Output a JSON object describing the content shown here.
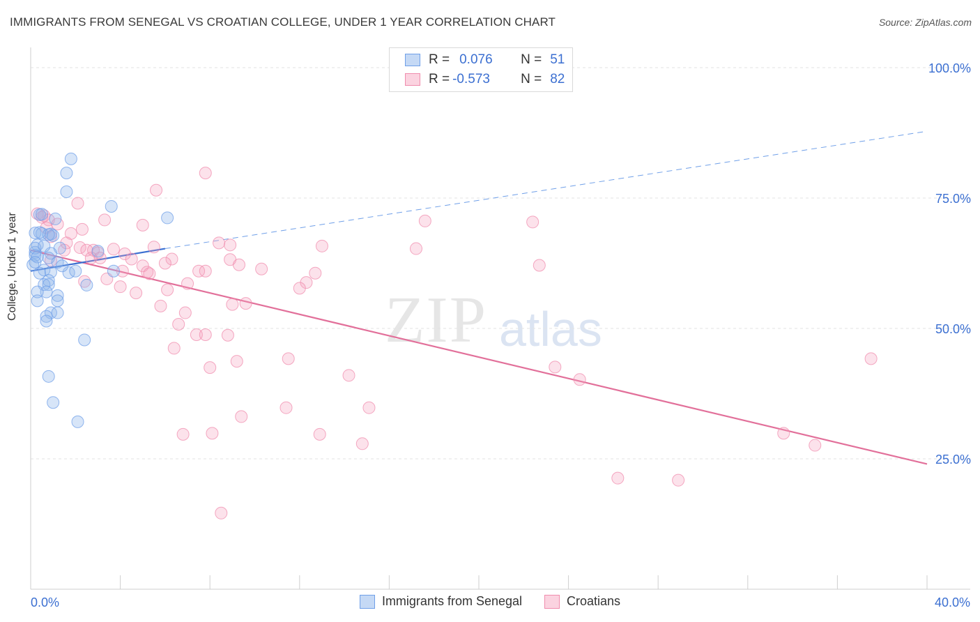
{
  "title": "IMMIGRANTS FROM SENEGAL VS CROATIAN COLLEGE, UNDER 1 YEAR CORRELATION CHART",
  "source": "Source: ZipAtlas.com",
  "watermark": {
    "zip": "ZIP",
    "atlas": "atlas"
  },
  "legend_top": {
    "rows": [
      {
        "r_label": "R =",
        "r_value": "0.076",
        "n_label": "N =",
        "n_value": "51",
        "color": "#6f9fe8"
      },
      {
        "r_label": "R =",
        "r_value": "-0.573",
        "n_label": "N =",
        "n_value": "82",
        "color": "#f08cad"
      }
    ]
  },
  "bottom_legend": [
    {
      "label": "Immigrants from Senegal",
      "color": "#6f9fe8"
    },
    {
      "label": "Croatians",
      "color": "#f08cad"
    }
  ],
  "chart_data": {
    "type": "scatter",
    "xlabel": "",
    "ylabel": "College, Under 1 year",
    "xlim": [
      0,
      40
    ],
    "ylim": [
      0,
      100
    ],
    "x_tick_labels": [
      {
        "value": 0,
        "label": "0.0%"
      },
      {
        "value": 40,
        "label": "40.0%"
      }
    ],
    "y_tick_labels": [
      {
        "value": 100,
        "label": "100.0%"
      },
      {
        "value": 75,
        "label": "75.0%"
      },
      {
        "value": 50,
        "label": "50.0%"
      },
      {
        "value": 25,
        "label": "25.0%"
      }
    ],
    "grid": true,
    "series": [
      {
        "name": "Immigrants from Senegal",
        "color": "#6f9fe8",
        "points": [
          [
            1.8,
            82.5
          ],
          [
            1.6,
            79.8
          ],
          [
            1.6,
            76.2
          ],
          [
            3.6,
            73.4
          ],
          [
            6.1,
            71.2
          ],
          [
            1.1,
            71.0
          ],
          [
            0.4,
            71.8
          ],
          [
            0.2,
            68.3
          ],
          [
            0.5,
            68.2
          ],
          [
            0.9,
            68.1
          ],
          [
            1.0,
            67.8
          ],
          [
            0.3,
            66.0
          ],
          [
            1.3,
            65.4
          ],
          [
            3.0,
            64.8
          ],
          [
            0.2,
            64.6
          ],
          [
            0.9,
            64.4
          ],
          [
            0.2,
            64.0
          ],
          [
            0.8,
            63.5
          ],
          [
            0.1,
            62.2
          ],
          [
            0.6,
            61.2
          ],
          [
            1.2,
            62.7
          ],
          [
            0.4,
            60.6
          ],
          [
            0.9,
            60.8
          ],
          [
            1.7,
            60.7
          ],
          [
            2.0,
            61.0
          ],
          [
            3.7,
            61.0
          ],
          [
            0.8,
            59.2
          ],
          [
            0.6,
            58.4
          ],
          [
            0.8,
            58.4
          ],
          [
            2.5,
            58.3
          ],
          [
            0.7,
            57.0
          ],
          [
            0.3,
            57.0
          ],
          [
            1.2,
            56.3
          ],
          [
            0.3,
            55.3
          ],
          [
            1.2,
            55.3
          ],
          [
            0.9,
            53.0
          ],
          [
            1.2,
            53.0
          ],
          [
            0.7,
            52.3
          ],
          [
            0.7,
            51.4
          ],
          [
            2.4,
            47.8
          ],
          [
            0.8,
            40.8
          ],
          [
            1.0,
            35.8
          ],
          [
            2.1,
            32.1
          ],
          [
            0.2,
            65.4
          ],
          [
            0.5,
            71.9
          ],
          [
            0.3,
            63.7
          ],
          [
            0.4,
            68.4
          ],
          [
            0.8,
            68.0
          ],
          [
            0.2,
            62.7
          ],
          [
            1.4,
            62.0
          ],
          [
            0.6,
            65.8
          ]
        ]
      },
      {
        "name": "Croatians",
        "color": "#f08cad",
        "points": [
          [
            7.8,
            79.8
          ],
          [
            5.6,
            76.5
          ],
          [
            2.1,
            74.0
          ],
          [
            0.3,
            72.0
          ],
          [
            0.6,
            71.6
          ],
          [
            0.5,
            71.3
          ],
          [
            0.8,
            70.8
          ],
          [
            3.3,
            70.8
          ],
          [
            17.6,
            70.6
          ],
          [
            22.4,
            70.4
          ],
          [
            1.2,
            70.0
          ],
          [
            5.0,
            69.8
          ],
          [
            0.7,
            69.3
          ],
          [
            2.3,
            69.0
          ],
          [
            1.8,
            68.2
          ],
          [
            0.9,
            67.6
          ],
          [
            1.6,
            66.4
          ],
          [
            8.4,
            66.4
          ],
          [
            8.9,
            66.0
          ],
          [
            13.0,
            65.8
          ],
          [
            5.5,
            65.6
          ],
          [
            2.2,
            65.5
          ],
          [
            3.7,
            65.2
          ],
          [
            17.2,
            65.3
          ],
          [
            2.8,
            65.0
          ],
          [
            1.5,
            65.0
          ],
          [
            3.0,
            64.5
          ],
          [
            4.2,
            64.3
          ],
          [
            2.7,
            63.5
          ],
          [
            3.1,
            63.5
          ],
          [
            4.5,
            63.3
          ],
          [
            6.3,
            63.3
          ],
          [
            8.9,
            63.2
          ],
          [
            0.9,
            63.0
          ],
          [
            5.0,
            62.0
          ],
          [
            6.0,
            62.5
          ],
          [
            9.3,
            62.2
          ],
          [
            10.3,
            61.4
          ],
          [
            22.7,
            62.1
          ],
          [
            7.5,
            61.0
          ],
          [
            7.8,
            61.0
          ],
          [
            4.1,
            61.0
          ],
          [
            5.2,
            60.8
          ],
          [
            5.3,
            60.5
          ],
          [
            12.7,
            60.6
          ],
          [
            3.4,
            59.5
          ],
          [
            7.0,
            58.6
          ],
          [
            12.3,
            58.8
          ],
          [
            2.4,
            59.0
          ],
          [
            4.0,
            58.0
          ],
          [
            6.1,
            57.4
          ],
          [
            12.0,
            57.7
          ],
          [
            4.7,
            56.8
          ],
          [
            9.0,
            54.6
          ],
          [
            9.6,
            54.8
          ],
          [
            5.8,
            54.3
          ],
          [
            6.9,
            53.0
          ],
          [
            6.6,
            50.8
          ],
          [
            7.4,
            48.8
          ],
          [
            7.8,
            48.8
          ],
          [
            8.8,
            48.7
          ],
          [
            6.4,
            46.2
          ],
          [
            11.5,
            44.2
          ],
          [
            9.2,
            43.7
          ],
          [
            8.0,
            42.5
          ],
          [
            14.2,
            41.0
          ],
          [
            23.4,
            42.6
          ],
          [
            24.5,
            40.2
          ],
          [
            37.5,
            44.2
          ],
          [
            11.4,
            34.8
          ],
          [
            15.1,
            34.8
          ],
          [
            9.4,
            33.1
          ],
          [
            6.8,
            29.7
          ],
          [
            8.1,
            29.9
          ],
          [
            12.9,
            29.7
          ],
          [
            14.8,
            27.9
          ],
          [
            33.6,
            29.9
          ],
          [
            35.0,
            27.6
          ],
          [
            26.2,
            21.3
          ],
          [
            28.9,
            20.9
          ],
          [
            8.5,
            14.6
          ],
          [
            2.5,
            65.0
          ]
        ]
      }
    ],
    "trend_lines": [
      {
        "series": "Immigrants from Senegal",
        "solid": [
          [
            0,
            61.0
          ],
          [
            6.0,
            65.3
          ]
        ],
        "dashed": [
          [
            6.0,
            65.3
          ],
          [
            40.0,
            87.8
          ]
        ]
      },
      {
        "series": "Croatians",
        "solid": [
          [
            0,
            65.0
          ],
          [
            40.0,
            24.0
          ]
        ]
      }
    ]
  }
}
